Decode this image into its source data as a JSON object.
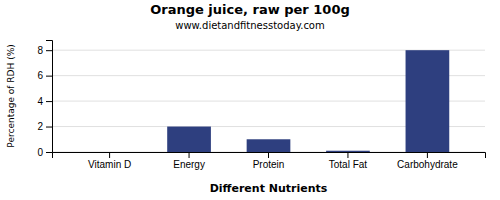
{
  "chart_data": {
    "type": "bar",
    "title": "Orange juice, raw per 100g",
    "subtitle": "www.dietandfitnesstoday.com",
    "categories": [
      "Vitamin D",
      "Energy",
      "Protein",
      "Total Fat",
      "Carbohydrate"
    ],
    "values": [
      0.0,
      2.0,
      1.0,
      0.1,
      8.0
    ],
    "color": "#2e3f7f",
    "xlabel": "Different Nutrients",
    "ylabel": "Percentage of RDH (%)",
    "ylim": [
      0,
      8.8
    ],
    "yticks": [
      0,
      2,
      4,
      6,
      8
    ],
    "grid": true
  }
}
